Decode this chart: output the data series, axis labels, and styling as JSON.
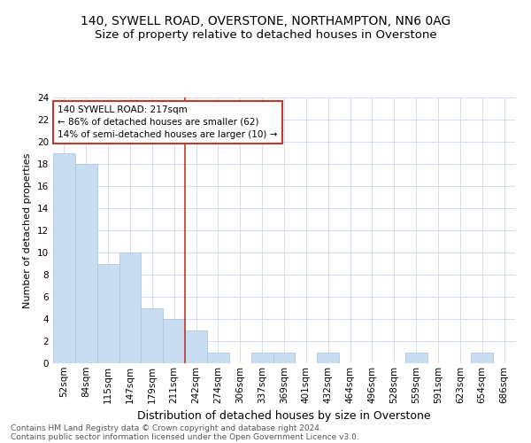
{
  "title1": "140, SYWELL ROAD, OVERSTONE, NORTHAMPTON, NN6 0AG",
  "title2": "Size of property relative to detached houses in Overstone",
  "xlabel": "Distribution of detached houses by size in Overstone",
  "ylabel": "Number of detached properties",
  "bin_labels": [
    "52sqm",
    "84sqm",
    "115sqm",
    "147sqm",
    "179sqm",
    "211sqm",
    "242sqm",
    "274sqm",
    "306sqm",
    "337sqm",
    "369sqm",
    "401sqm",
    "432sqm",
    "464sqm",
    "496sqm",
    "528sqm",
    "559sqm",
    "591sqm",
    "623sqm",
    "654sqm",
    "686sqm"
  ],
  "bar_heights": [
    19,
    18,
    9,
    10,
    5,
    4,
    3,
    1,
    0,
    1,
    1,
    0,
    1,
    0,
    0,
    0,
    1,
    0,
    0,
    1,
    0
  ],
  "bar_color": "#c9ddf2",
  "bar_edge_color": "#aabfd8",
  "grid_color": "#cdd8e8",
  "vline_x": 5.5,
  "vline_color": "#c0392b",
  "ylim": [
    0,
    24
  ],
  "yticks": [
    0,
    2,
    4,
    6,
    8,
    10,
    12,
    14,
    16,
    18,
    20,
    22,
    24
  ],
  "annotation_line1": "140 SYWELL ROAD: 217sqm",
  "annotation_line2": "← 86% of detached houses are smaller (62)",
  "annotation_line3": "14% of semi-detached houses are larger (10) →",
  "annotation_box_color": "#ffffff",
  "annotation_box_edge": "#c0392b",
  "footer1": "Contains HM Land Registry data © Crown copyright and database right 2024.",
  "footer2": "Contains public sector information licensed under the Open Government Licence v3.0.",
  "bg_color": "#ffffff",
  "title_fontsize": 10,
  "subtitle_fontsize": 9.5,
  "xlabel_fontsize": 9,
  "ylabel_fontsize": 8,
  "tick_fontsize": 7.5,
  "annotation_fontsize": 7.5,
  "footer_fontsize": 6.5
}
